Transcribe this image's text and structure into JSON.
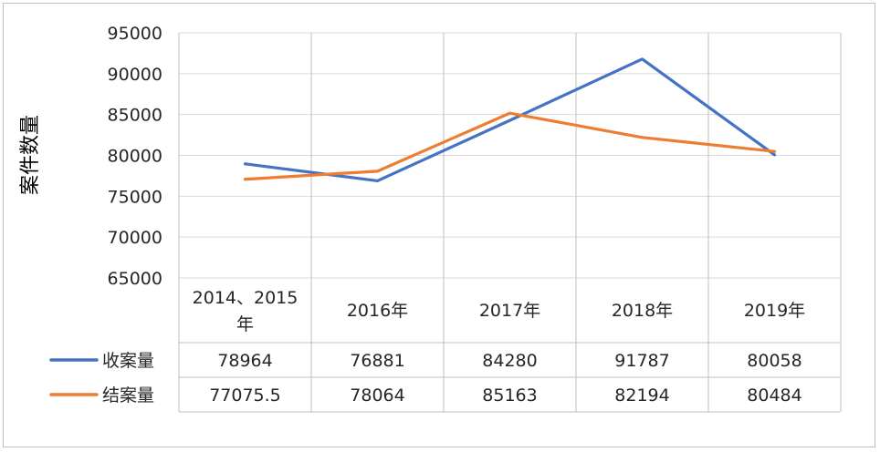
{
  "chart_data": {
    "type": "line",
    "ylabel": "案件数量",
    "ylim": [
      65000,
      95000
    ],
    "yticks": [
      "95000",
      "90000",
      "85000",
      "80000",
      "75000",
      "70000",
      "65000"
    ],
    "categories": [
      "2014、2015年",
      "2016年",
      "2017年",
      "2018年",
      "2019年"
    ],
    "grid": true,
    "legend": "data-table",
    "series": [
      {
        "name": "收案量",
        "color": "#4472C4",
        "values": [
          78964,
          76881,
          84280,
          91787,
          80058
        ],
        "labels": [
          "78964",
          "76881",
          "84280",
          "91787",
          "80058"
        ]
      },
      {
        "name": "结案量",
        "color": "#ED7D31",
        "values": [
          77075.5,
          78064,
          85163,
          82194,
          80484
        ],
        "labels": [
          "77075.5",
          "78064",
          "85163",
          "82194",
          "80484"
        ]
      }
    ]
  }
}
